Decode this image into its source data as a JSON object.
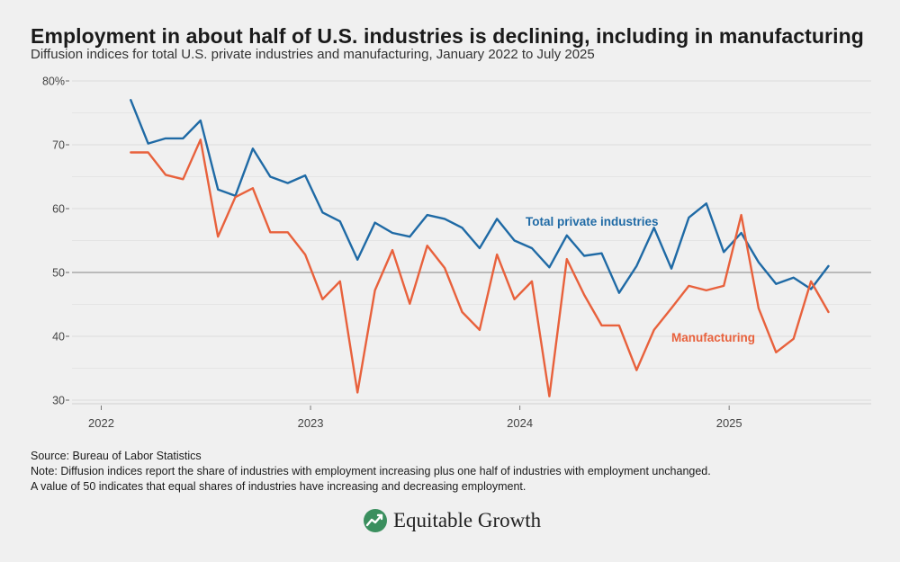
{
  "title": "Employment in about half of U.S. industries is declining, including in manufacturing",
  "subtitle": "Diffusion indices for total U.S. private industries and manufacturing, January 2022 to July 2025",
  "footer": {
    "source": "Source: Bureau of Labor Statistics",
    "note1": "Note: Diffusion indices report the share of industries with employment increasing plus one half of industries with employment unchanged.",
    "note2": "A value of 50 indicates that equal shares of industries have increasing and decreasing employment."
  },
  "brand": {
    "name": "Equitable Growth",
    "icon": "growth-arrow-logo-icon",
    "color": "#2e8b57"
  },
  "colors": {
    "total": "#1f6aa5",
    "manufacturing": "#e8613c",
    "reference": "#999999"
  },
  "chart_data": {
    "type": "line",
    "title": "Employment in about half of U.S. industries is declining, including in manufacturing",
    "xlabel": "",
    "ylabel": "",
    "ylim": [
      28,
      82
    ],
    "yticks": [
      {
        "value": 30,
        "label": "30"
      },
      {
        "value": 40,
        "label": "40"
      },
      {
        "value": 50,
        "label": "50"
      },
      {
        "value": 60,
        "label": "60"
      },
      {
        "value": 70,
        "label": "70"
      },
      {
        "value": 80,
        "label": "80%"
      }
    ],
    "xticks": [
      {
        "index": 0,
        "label": "2022"
      },
      {
        "index": 12,
        "label": "2023"
      },
      {
        "index": 24,
        "label": "2024"
      },
      {
        "index": 36,
        "label": "2025"
      }
    ],
    "x_months": [
      "Jan 2022",
      "Feb 2022",
      "Mar 2022",
      "Apr 2022",
      "May 2022",
      "Jun 2022",
      "Jul 2022",
      "Aug 2022",
      "Sep 2022",
      "Oct 2022",
      "Nov 2022",
      "Dec 2022",
      "Jan 2023",
      "Feb 2023",
      "Mar 2023",
      "Apr 2023",
      "May 2023",
      "Jun 2023",
      "Jul 2023",
      "Aug 2023",
      "Sep 2023",
      "Oct 2023",
      "Nov 2023",
      "Dec 2023",
      "Jan 2024",
      "Feb 2024",
      "Mar 2024",
      "Apr 2024",
      "May 2024",
      "Jun 2024",
      "Jul 2024",
      "Aug 2024",
      "Sep 2024",
      "Oct 2024",
      "Nov 2024",
      "Dec 2024",
      "Jan 2025",
      "Feb 2025",
      "Mar 2025",
      "Apr 2025",
      "May 2025",
      "Jun 2025",
      "Jul 2025"
    ],
    "reference_line": 50,
    "series": [
      {
        "name": "Total private industries",
        "key": "total",
        "start_index": 2,
        "values": [
          77.0,
          70.2,
          71.0,
          71.0,
          73.8,
          63.0,
          62.0,
          69.4,
          65.0,
          64.0,
          65.2,
          59.4,
          58.0,
          52.0,
          57.8,
          56.2,
          55.6,
          59.0,
          58.4,
          57.0,
          53.8,
          58.4,
          55.0,
          53.8,
          50.8,
          55.8,
          52.6,
          53.0,
          46.8,
          51.0,
          57.0,
          50.6,
          58.6,
          60.8,
          53.2,
          56.2,
          51.6,
          48.2,
          49.2,
          47.4,
          51.0
        ]
      },
      {
        "name": "Manufacturing",
        "key": "manufacturing",
        "start_index": 2,
        "values": [
          68.8,
          68.8,
          65.3,
          64.6,
          70.8,
          55.6,
          61.8,
          63.2,
          56.3,
          56.3,
          52.8,
          45.8,
          48.6,
          31.2,
          47.2,
          53.5,
          45.1,
          54.2,
          50.7,
          43.8,
          41.0,
          52.8,
          45.8,
          48.6,
          30.6,
          52.1,
          46.5,
          41.7,
          41.7,
          34.7,
          41.0,
          44.4,
          47.9,
          47.2,
          47.9,
          59.0,
          44.4,
          37.5,
          39.6,
          48.6,
          43.8
        ]
      }
    ],
    "annotations": [
      {
        "series": "total",
        "text": "Total private industries"
      },
      {
        "series": "manufacturing",
        "text": "Manufacturing"
      }
    ]
  }
}
